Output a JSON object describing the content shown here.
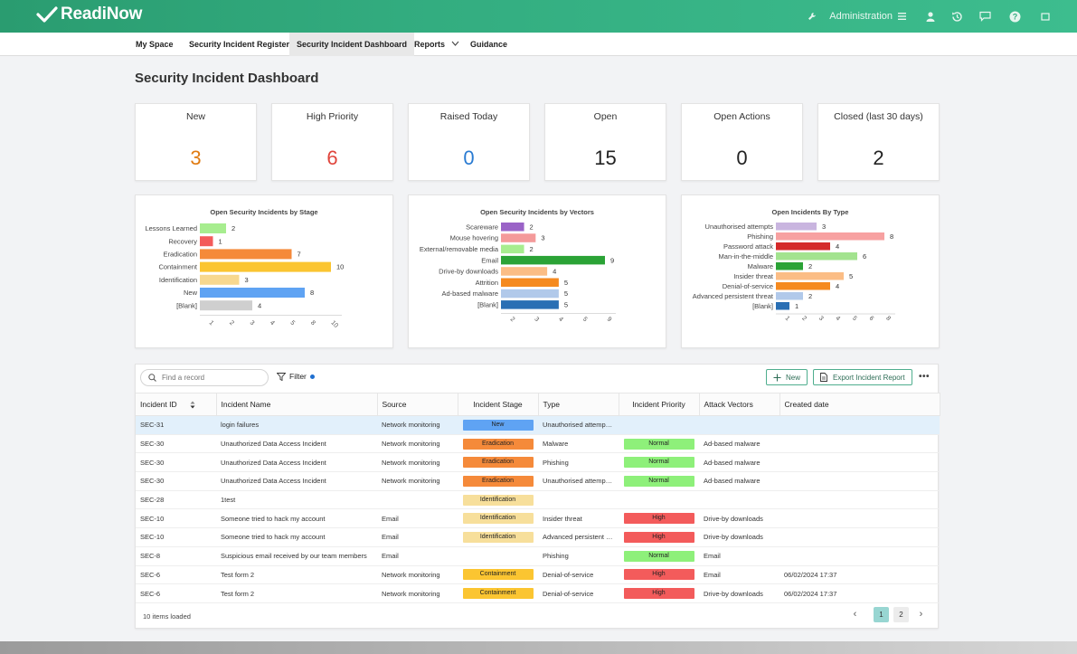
{
  "app": {
    "name": "ReadiNow",
    "admin_label": "Administration"
  },
  "nav": [
    {
      "label": "My Space",
      "active": false
    },
    {
      "label": "Security Incident Register",
      "active": false
    },
    {
      "label": "Security Incident Dashboard",
      "active": true
    },
    {
      "label": "Reports",
      "active": false
    },
    {
      "label": "Guidance",
      "active": false
    }
  ],
  "page_title": "Security Incident Dashboard",
  "kpis": [
    {
      "label": "New",
      "value": "3",
      "color": "#e07a10"
    },
    {
      "label": "High Priority",
      "value": "6",
      "color": "#e0453c"
    },
    {
      "label": "Raised Today",
      "value": "0",
      "color": "#2a7bd2"
    },
    {
      "label": "Open",
      "value": "15",
      "color": "#222222"
    },
    {
      "label": "Open Actions",
      "value": "0",
      "color": "#222222"
    },
    {
      "label": "Closed (last 30 days)",
      "value": "2",
      "color": "#222222"
    }
  ],
  "chart_data": [
    {
      "type": "bar",
      "orientation": "horizontal",
      "title": "Open Security Incidents by Stage",
      "categories": [
        "Lessons Learned",
        "Recovery",
        "Eradication",
        "Containment",
        "Identification",
        "New",
        "[Blank]"
      ],
      "values": [
        2,
        1,
        7,
        10,
        3,
        8,
        4
      ],
      "colors": [
        "#a7ed8f",
        "#f35b5b",
        "#f58a3a",
        "#fbc531",
        "#f7d88f",
        "#5fa3f3",
        "#cfcfcf"
      ],
      "xticks": [
        "1",
        "2",
        "3",
        "4",
        "5",
        "8",
        "10"
      ],
      "xlim": [
        0,
        10
      ]
    },
    {
      "type": "bar",
      "orientation": "horizontal",
      "title": "Open Security Incidents by Vectors",
      "categories": [
        "Scareware",
        "Mouse hovering",
        "External/removable media",
        "Email",
        "Drive-by downloads",
        "Attrition",
        "Ad-based malware",
        "[Blank]"
      ],
      "values": [
        2,
        3,
        2,
        9,
        4,
        5,
        5,
        5
      ],
      "colors": [
        "#9a63c7",
        "#f49a9a",
        "#a7ed8f",
        "#2ba336",
        "#fbbd85",
        "#f58a1f",
        "#b1c9ea",
        "#2a6fb4"
      ],
      "xticks": [
        "2",
        "3",
        "4",
        "5",
        "9"
      ],
      "xlim": [
        0,
        9
      ]
    },
    {
      "type": "bar",
      "orientation": "horizontal",
      "title": "Open Incidents By Type",
      "categories": [
        "Unauthorised attempts",
        "Phishing",
        "Password attack",
        "Man-in-the-middle",
        "Malware",
        "Insider threat",
        "Denial-of-service",
        "Advanced persistent threat",
        "[Blank]"
      ],
      "values": [
        3,
        8,
        4,
        6,
        2,
        5,
        4,
        2,
        1
      ],
      "colors": [
        "#c9b5df",
        "#f7a1a1",
        "#d42a2a",
        "#a3e38f",
        "#2ba336",
        "#fbbd85",
        "#f58a1f",
        "#b1c9ea",
        "#2a6fb4"
      ],
      "xticks": [
        "1",
        "2",
        "3",
        "4",
        "5",
        "6",
        "8"
      ],
      "xlim": [
        0,
        8
      ]
    }
  ],
  "table": {
    "search_placeholder": "Find a record",
    "filter_label": "Filter",
    "new_label": "New",
    "export_label": "Export Incident Report",
    "columns": [
      "Incident ID",
      "Incident Name",
      "Source",
      "Incident Stage",
      "Type",
      "Incident Priority",
      "Attack Vectors",
      "Created date"
    ],
    "rows": [
      {
        "id": "SEC-31",
        "name": "login failures",
        "source": "Network monitoring",
        "stage": "New",
        "type": "Unauthorised attemp…",
        "priority": "",
        "vector": "",
        "created": "",
        "selected": true
      },
      {
        "id": "SEC-30",
        "name": "Unauthorized Data Access Incident",
        "source": "Network monitoring",
        "stage": "Eradication",
        "type": "Malware",
        "priority": "Normal",
        "vector": "Ad-based malware",
        "created": ""
      },
      {
        "id": "SEC-30",
        "name": "Unauthorized Data Access Incident",
        "source": "Network monitoring",
        "stage": "Eradication",
        "type": "Phishing",
        "priority": "Normal",
        "vector": "Ad-based malware",
        "created": ""
      },
      {
        "id": "SEC-30",
        "name": "Unauthorized Data Access Incident",
        "source": "Network monitoring",
        "stage": "Eradication",
        "type": "Unauthorised attemp…",
        "priority": "Normal",
        "vector": "Ad-based malware",
        "created": ""
      },
      {
        "id": "SEC-28",
        "name": "1test",
        "source": "",
        "stage": "Identification",
        "type": "",
        "priority": "",
        "vector": "",
        "created": ""
      },
      {
        "id": "SEC-10",
        "name": "Someone tried to hack my account",
        "source": "Email",
        "stage": "Identification",
        "type": "Insider threat",
        "priority": "High",
        "vector": "Drive-by downloads",
        "created": ""
      },
      {
        "id": "SEC-10",
        "name": "Someone tried to hack my account",
        "source": "Email",
        "stage": "Identification",
        "type": "Advanced persistent …",
        "priority": "High",
        "vector": "Drive-by downloads",
        "created": ""
      },
      {
        "id": "SEC-8",
        "name": "Suspicious email received by our team members",
        "source": "Email",
        "stage": "",
        "type": "Phishing",
        "priority": "Normal",
        "vector": "Email",
        "created": ""
      },
      {
        "id": "SEC-6",
        "name": "Test form 2",
        "source": "Network monitoring",
        "stage": "Containment",
        "type": "Denial-of-service",
        "priority": "High",
        "vector": "Email",
        "created": "06/02/2024 17:37"
      },
      {
        "id": "SEC-6",
        "name": "Test form 2",
        "source": "Network monitoring",
        "stage": "Containment",
        "type": "Denial-of-service",
        "priority": "High",
        "vector": "Drive-by downloads",
        "created": "06/02/2024 17:37"
      }
    ],
    "stage_colors": {
      "New": "#5fa3f3",
      "Eradication": "#f58a3a",
      "Identification": "#f7df9b",
      "Containment": "#fbc531"
    },
    "priority_colors": {
      "Normal": "#8ef07a",
      "High": "#f35b5b"
    },
    "status": "10 items loaded",
    "pages": [
      "1",
      "2"
    ],
    "current_page": "1"
  }
}
